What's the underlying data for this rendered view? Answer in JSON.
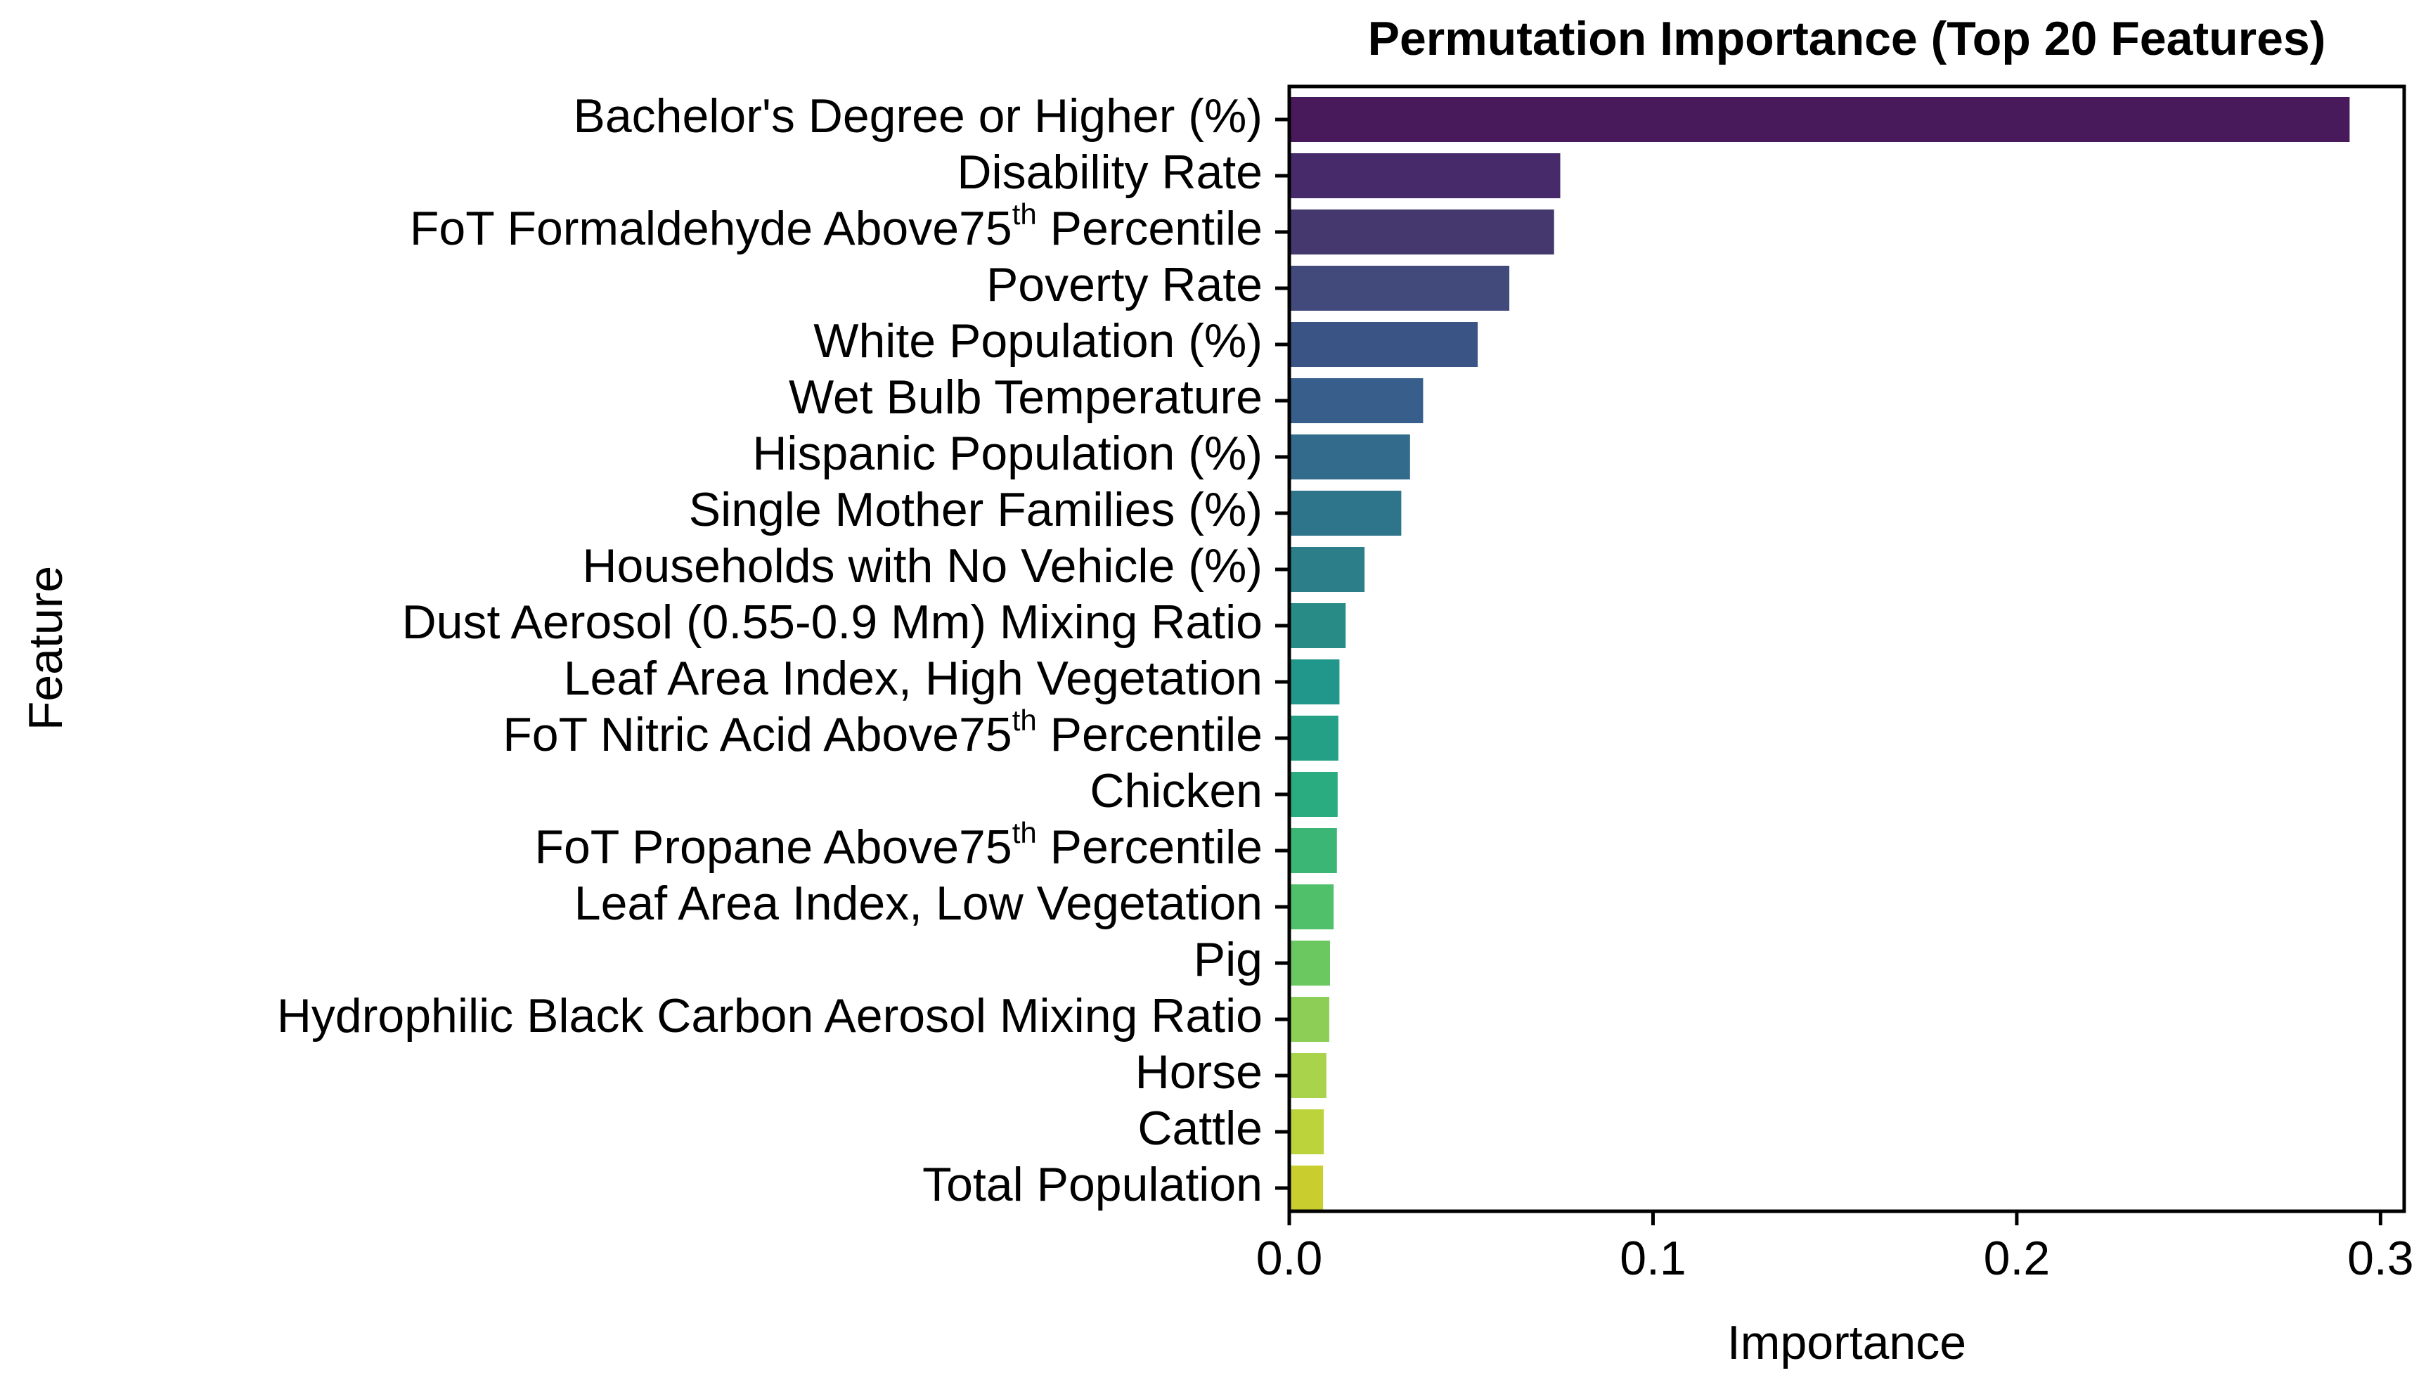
{
  "chart_data": {
    "type": "bar",
    "orientation": "horizontal",
    "title": "Permutation Importance (Top 20 Features)",
    "xlabel": "Importance",
    "ylabel": "Feature",
    "xlim": [
      0,
      0.3065
    ],
    "xticks": [
      {
        "value": 0.0,
        "label": "0.0"
      },
      {
        "value": 0.1,
        "label": "0.1"
      },
      {
        "value": 0.2,
        "label": "0.2"
      },
      {
        "value": 0.3,
        "label": "0.3"
      }
    ],
    "grid": false,
    "legend": "none",
    "palette": "viridis",
    "categories": [
      {
        "label": "Bachelor's Degree or Higher (%)"
      },
      {
        "label": "Disability Rate"
      },
      {
        "label": "FoT Formaldehyde Above75",
        "sup": "th",
        "suffix": " Percentile"
      },
      {
        "label": "Poverty Rate"
      },
      {
        "label": "White Population (%)"
      },
      {
        "label": "Wet Bulb Temperature"
      },
      {
        "label": "Hispanic Population (%)"
      },
      {
        "label": "Single Mother Families (%)"
      },
      {
        "label": "Households with No Vehicle (%)"
      },
      {
        "label": "Dust Aerosol (0.55-0.9 Mm) Mixing Ratio"
      },
      {
        "label": "Leaf Area Index, High Vegetation"
      },
      {
        "label": "FoT Nitric Acid Above75",
        "sup": "th",
        "suffix": " Percentile"
      },
      {
        "label": "Chicken"
      },
      {
        "label": "FoT Propane Above75",
        "sup": "th",
        "suffix": " Percentile"
      },
      {
        "label": "Leaf Area Index, Low Vegetation"
      },
      {
        "label": "Pig"
      },
      {
        "label": "Hydrophilic Black Carbon Aerosol Mixing Ratio"
      },
      {
        "label": "Horse"
      },
      {
        "label": "Cattle"
      },
      {
        "label": "Total Population"
      }
    ],
    "values": [
      0.2915,
      0.0745,
      0.0728,
      0.0605,
      0.0518,
      0.0368,
      0.0332,
      0.0308,
      0.0207,
      0.0155,
      0.0138,
      0.0135,
      0.0133,
      0.0131,
      0.0122,
      0.0112,
      0.011,
      0.0102,
      0.0095,
      0.0093
    ],
    "colors": [
      "#481a5b",
      "#472a6a",
      "#45386f",
      "#414a7a",
      "#3a5486",
      "#385f8c",
      "#336b8c",
      "#2e748b",
      "#2c7f89",
      "#288b85",
      "#21968b",
      "#24a086",
      "#2aab80",
      "#3cb674",
      "#51c06a",
      "#6bc861",
      "#8cce56",
      "#a8d34a",
      "#bdd33c",
      "#c9cd2e"
    ]
  }
}
